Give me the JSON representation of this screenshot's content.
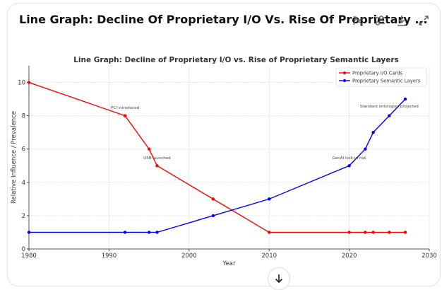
{
  "header": {
    "title": "Line Graph: Decline Of Proprietary I/O Vs. Rise Of Proprietary ...",
    "icons": [
      "chart-hide-icon",
      "sliders-icon",
      "download-icon",
      "expand-icon"
    ]
  },
  "chart_data": {
    "type": "line",
    "title": "Line Graph: Decline of Proprietary I/O vs. Rise of Proprietary Semantic Layers",
    "xlabel": "Year",
    "ylabel": "Relative Influence / Prevalence",
    "xlim": [
      1980,
      2030
    ],
    "ylim": [
      0,
      11
    ],
    "xticks": [
      1980,
      1990,
      2000,
      2010,
      2020,
      2030
    ],
    "yticks": [
      0,
      2,
      4,
      6,
      8,
      10
    ],
    "grid": true,
    "legend": "top-right",
    "x": [
      1980,
      1992,
      1995,
      1996,
      2003,
      2010,
      2020,
      2022,
      2023,
      2025,
      2027
    ],
    "series": [
      {
        "name": "Proprietary I/O Cards",
        "color": "#ff0000",
        "values": [
          10,
          8,
          6,
          5,
          3,
          1,
          1,
          1,
          1,
          1,
          1
        ]
      },
      {
        "name": "Proprietary Semantic Layers",
        "color": "#0000ff",
        "values": [
          1,
          1,
          1,
          1,
          2,
          3,
          5,
          6,
          7,
          8,
          9
        ]
      }
    ],
    "annotations": [
      {
        "text": "PCI introduced",
        "x": 1992,
        "y": 8.4
      },
      {
        "text": "USB launched",
        "x": 1996,
        "y": 5.4
      },
      {
        "text": "GenAI lock-in risk",
        "x": 2020,
        "y": 5.4
      },
      {
        "text": "Standard ontologies projected",
        "x": 2025,
        "y": 8.5
      }
    ]
  },
  "scroll_down_icon": "arrow-down-icon"
}
